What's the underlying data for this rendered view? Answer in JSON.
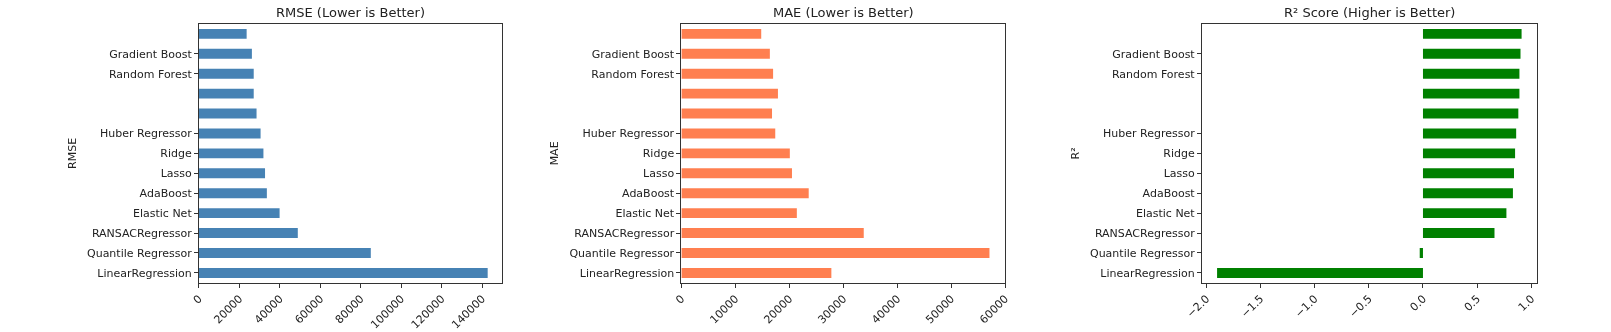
{
  "chart_data": [
    {
      "type": "bar",
      "orientation": "horizontal",
      "title": "RMSE (Lower is Better)",
      "ylabel": "RMSE",
      "categories": [
        null,
        "Gradient Boost",
        "Random Forest",
        null,
        null,
        "Huber Regressor",
        "Ridge",
        "Lasso",
        "AdaBoost",
        "Elastic Net",
        "RANSACRegressor",
        "Quantile Regressor",
        "LinearRegression"
      ],
      "values": [
        23600,
        26200,
        27100,
        27100,
        28500,
        30500,
        31900,
        32700,
        33600,
        39900,
        48900,
        85000,
        142800
      ],
      "color": "#4682b4",
      "xlim": [
        0,
        149900
      ],
      "xticks": [
        0,
        20000,
        40000,
        60000,
        80000,
        100000,
        120000,
        140000
      ],
      "legend": false
    },
    {
      "type": "bar",
      "orientation": "horizontal",
      "title": "MAE (Lower is Better)",
      "ylabel": "MAE",
      "categories": [
        null,
        "Gradient Boost",
        "Random Forest",
        null,
        null,
        "Huber Regressor",
        "Ridge",
        "Lasso",
        "AdaBoost",
        "Elastic Net",
        "RANSACRegressor",
        "Quantile Regressor",
        "LinearRegression"
      ],
      "values": [
        14800,
        16400,
        17000,
        17900,
        16800,
        17400,
        20100,
        20500,
        23600,
        21400,
        33800,
        57100,
        27800
      ],
      "color": "#ff7f50",
      "xlim": [
        0,
        60000
      ],
      "xticks": [
        0,
        10000,
        20000,
        30000,
        40000,
        50000,
        60000
      ],
      "legend": false
    },
    {
      "type": "bar",
      "orientation": "horizontal",
      "title": "R² Score (Higher is Better)",
      "ylabel": "R²",
      "categories": [
        null,
        "Gradient Boost",
        "Random Forest",
        null,
        null,
        "Huber Regressor",
        "Ridge",
        "Lasso",
        "AdaBoost",
        "Elastic Net",
        "RANSACRegressor",
        "Quantile Regressor",
        "LinearRegression"
      ],
      "values": [
        0.91,
        0.9,
        0.89,
        0.89,
        0.88,
        0.86,
        0.85,
        0.84,
        0.83,
        0.77,
        0.66,
        -0.03,
        -1.9
      ],
      "color": "#008000",
      "xlim": [
        -2.04,
        1.05
      ],
      "xticks": [
        {
          "value": -2,
          "label": "−2.0"
        },
        {
          "value": -1.5,
          "label": "−1.5"
        },
        {
          "value": -1,
          "label": "−1.0"
        },
        {
          "value": -0.5,
          "label": "−0.5"
        },
        {
          "value": 0,
          "label": "0.0"
        },
        {
          "value": 0.5,
          "label": "0.5"
        },
        {
          "value": 1,
          "label": "1.0"
        }
      ],
      "legend": false
    }
  ]
}
